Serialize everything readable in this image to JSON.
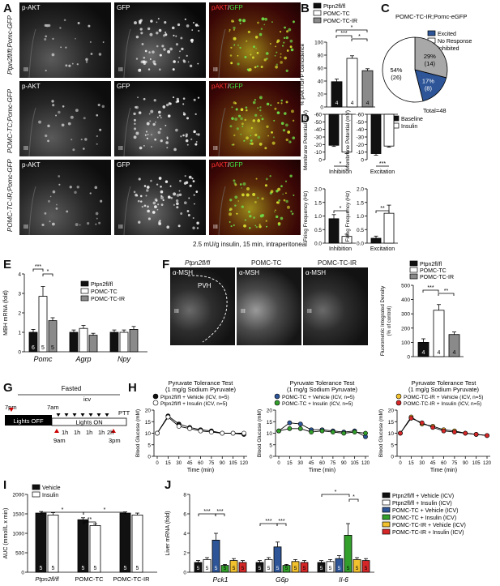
{
  "panel_letters": [
    "A",
    "B",
    "C",
    "D",
    "E",
    "F",
    "G",
    "H",
    "I",
    "J"
  ],
  "colors": {
    "black": "#111111",
    "white": "#ffffff",
    "gray": "#8a8a8a",
    "blue": "#2d5597",
    "green": "#33a02c",
    "yellow": "#f2c12e",
    "red": "#d62728"
  },
  "panelA": {
    "columns": [
      "p-AKT",
      "GFP",
      "pAKT/GFP"
    ],
    "merge_parts": [
      "pAKT",
      "/",
      "GFP"
    ],
    "rows": [
      "Ptpn2fl/fl;Pomc-GFP",
      "POMC-TC;Pomc-GFP",
      "POMC-TC-IR;Pomc-GFP"
    ],
    "region_label": "III",
    "caption": "2.5 mU/g insulin, 15 min, intraperitoneal"
  },
  "panelB": {
    "legend": [
      "Ptpn2fl/fl",
      "POMC-TC",
      "POMC-TC-IR"
    ],
    "ylabel": "% pAKT/GFP Coincidence",
    "yticks": [
      "0",
      "20",
      "40",
      "60",
      "80",
      "100"
    ],
    "n": [
      "4",
      "4",
      "4"
    ],
    "sig": [
      "***",
      "*",
      "*"
    ]
  },
  "panelC": {
    "title": "POMC-TC-IR;Pomc-eGFP",
    "legend": [
      "Excited",
      "No Response",
      "Inhibited"
    ],
    "slices": [
      {
        "label": "17%",
        "count": "(8)"
      },
      {
        "label": "54%",
        "count": "(26)"
      },
      {
        "label": "29%",
        "count": "(14)"
      }
    ],
    "total": "Total=48"
  },
  "panelD": {
    "legend": [
      "Baseline",
      "Insulin"
    ],
    "mp_ylabel": "Membrane Potential (mV)",
    "ff_ylabel": "Firing Frequency (Hz)",
    "mp_yticks": [
      "0",
      "-10",
      "-20",
      "-30",
      "-40",
      "-50",
      "-60"
    ],
    "ff_yticks": [
      "0.0",
      "0.5",
      "1.0",
      "1.5",
      "2.0"
    ],
    "xlabels": [
      "Inhibition",
      "Excitation"
    ],
    "sig": [
      "*",
      "***",
      "*",
      "**"
    ]
  },
  "panelE": {
    "legend": [
      "Ptpn2fl/fl",
      "POMC-TC",
      "POMC-TC-IR"
    ],
    "ylabel": "MBH mRNA (fold)",
    "yticks": [
      "0",
      "1",
      "2",
      "3",
      "4"
    ],
    "categories": [
      "Pomc",
      "Agrp",
      "Npy"
    ],
    "n": [
      "6",
      "5",
      "5"
    ],
    "sig": [
      "***",
      "*"
    ]
  },
  "panelF": {
    "columns": [
      "Ptpn2fl/fl",
      "POMC-TC",
      "POMC-TC-IR"
    ],
    "stain": "α-MSH",
    "pvh_label": "PVH",
    "region_label": "III",
    "legend": [
      "Ptpn2fl/fl",
      "POMC-TC",
      "POMC-TC-IR"
    ],
    "ylabel_lines": [
      "Fluorometric Integrated Density",
      "(% of control)"
    ],
    "yticks": [
      "0",
      "100",
      "200",
      "300",
      "400",
      "500"
    ],
    "n": [
      "4",
      "4",
      "4"
    ],
    "sig": [
      "***",
      "**"
    ]
  },
  "panelG": {
    "fasted": "Fasted",
    "lights_off": "Lights OFF",
    "lights_on": "Lights ON",
    "times": [
      "7pm",
      "7am",
      "9am",
      "3pm",
      "2h"
    ],
    "intervals": [
      "1h",
      "1h",
      "1h",
      "1h"
    ],
    "icv": "icv",
    "ptt": "PTT"
  },
  "panelH": {
    "title_lines": [
      "Pyruvate Tolerance Test",
      "(1 mg/g Sodium Pyruvate)"
    ],
    "ylabel": "Blood Glucose (mM)",
    "xlabel": "Time (min)",
    "xticks": [
      "0",
      "15",
      "30",
      "45",
      "60",
      "75",
      "90",
      "105",
      "120"
    ],
    "yticks": [
      "0",
      "5",
      "10",
      "15",
      "20"
    ],
    "legends": [
      [
        "Ptpn2fl/fl + Vehicle (ICV, n=5)",
        "Ptpn2fl/fl + Insulin (ICV, n=5)"
      ],
      [
        "POMC-TC + Vehicle (ICV, n=5)",
        "POMC-TC + Insulin (ICV, n=5)"
      ],
      [
        "POMC-TC-IR + Vehicle (ICV, n=5)",
        "POMC-TC-IR + Insulin (ICV, n=5)"
      ]
    ]
  },
  "panelI": {
    "legend": [
      "Vehicle",
      "Insulin"
    ],
    "ylabel": "AUC (mmol/L x min)",
    "yticks": [
      "0",
      "500",
      "1000",
      "1500",
      "2000"
    ],
    "groups": [
      "Ptpn2fl/fl",
      "POMC-TC",
      "POMC-TC-IR"
    ],
    "n": [
      "5",
      "5",
      "5",
      "5",
      "5",
      "5"
    ],
    "sig": [
      "*",
      "*",
      "**"
    ]
  },
  "panelJ": {
    "ylabel": "Liver mRNA (fold)",
    "yticks": [
      "0",
      "2",
      "4",
      "6",
      "8"
    ],
    "genes": [
      "Pck1",
      "G6p",
      "Il-6"
    ],
    "legend": [
      "Ptpn2fl/fl + Vehicle (ICV)",
      "Ptpn2fl/fl + Insulin (ICV)",
      "POMC-TC + Vehicle (ICV)",
      "POMC-TC + Insulin (ICV)",
      "POMC-TC-IR + Vehicle (ICV)",
      "POMC-TC-IR + Insulin (ICV)"
    ],
    "n": "5",
    "sig": [
      "***",
      "***",
      "***",
      "***",
      "*",
      "*"
    ]
  },
  "chart_data": [
    {
      "type": "bar",
      "panel": "B",
      "categories": [
        "Ptpn2fl/fl",
        "POMC-TC",
        "POMC-TC-IR"
      ],
      "values": [
        39,
        75,
        56
      ],
      "errors": [
        4,
        4,
        3
      ],
      "ylabel": "% pAKT/GFP Coincidence",
      "ylim": [
        0,
        100
      ]
    },
    {
      "type": "pie",
      "panel": "C",
      "categories": [
        "Excited",
        "No Response",
        "Inhibited"
      ],
      "values": [
        17,
        54,
        29
      ],
      "counts": [
        8,
        26,
        14
      ]
    },
    {
      "type": "bar",
      "panel": "D-MP-Inhibition",
      "categories": [
        "Baseline",
        "Insulin"
      ],
      "values": [
        -41,
        -50
      ],
      "errors": [
        1.5,
        2
      ],
      "ylim": [
        -60,
        0
      ]
    },
    {
      "type": "bar",
      "panel": "D-MP-Excitation",
      "categories": [
        "Baseline",
        "Insulin"
      ],
      "values": [
        -52,
        -42
      ],
      "errors": [
        2,
        1.5
      ],
      "ylim": [
        -60,
        0
      ]
    },
    {
      "type": "bar",
      "panel": "D-FF-Inhibition",
      "categories": [
        "Baseline",
        "Insulin"
      ],
      "values": [
        0.9,
        0.25
      ],
      "errors": [
        0.15,
        0.08
      ],
      "ylim": [
        0,
        2
      ]
    },
    {
      "type": "bar",
      "panel": "D-FF-Excitation",
      "categories": [
        "Baseline",
        "Insulin"
      ],
      "values": [
        0.18,
        1.1
      ],
      "errors": [
        0.08,
        0.3
      ],
      "ylim": [
        0,
        2
      ]
    },
    {
      "type": "bar",
      "panel": "E",
      "categories": [
        "Pomc",
        "Agrp",
        "Npy"
      ],
      "series": [
        {
          "name": "Ptpn2fl/fl",
          "values": [
            1.0,
            1.0,
            1.0
          ],
          "errors": [
            0.15,
            0.12,
            0.12
          ]
        },
        {
          "name": "POMC-TC",
          "values": [
            2.85,
            1.2,
            1.0
          ],
          "errors": [
            0.5,
            0.15,
            0.12
          ]
        },
        {
          "name": "POMC-TC-IR",
          "values": [
            1.6,
            0.85,
            1.15
          ],
          "errors": [
            0.15,
            0.1,
            0.15
          ]
        }
      ],
      "ylabel": "MBH mRNA (fold)",
      "ylim": [
        0,
        4
      ]
    },
    {
      "type": "bar",
      "panel": "F",
      "categories": [
        "Ptpn2fl/fl",
        "POMC-TC",
        "POMC-TC-IR"
      ],
      "values": [
        100,
        325,
        155
      ],
      "errors": [
        25,
        40,
        18
      ],
      "ylim": [
        0,
        500
      ]
    },
    {
      "type": "line",
      "panel": "H1",
      "x": [
        0,
        15,
        30,
        45,
        60,
        75,
        90,
        105,
        120
      ],
      "series": [
        {
          "name": "Ptpn2fl/fl + Vehicle (ICV, n=5)",
          "values": [
            10,
            17.5,
            14,
            12.5,
            11.5,
            11,
            10,
            10,
            9.5
          ]
        },
        {
          "name": "Ptpn2fl/fl + Insulin (ICV, n=5)",
          "values": [
            10,
            17,
            13,
            12,
            11,
            10.5,
            10,
            10,
            10
          ]
        }
      ],
      "ylim": [
        0,
        20
      ]
    },
    {
      "type": "line",
      "panel": "H2",
      "x": [
        0,
        15,
        30,
        45,
        60,
        75,
        90,
        105,
        120
      ],
      "series": [
        {
          "name": "POMC-TC + Vehicle (ICV, n=5)",
          "values": [
            11,
            14.5,
            14,
            11.5,
            11.5,
            11,
            10.5,
            11,
            8.5
          ]
        },
        {
          "name": "POMC-TC + Insulin (ICV, n=5)",
          "values": [
            11,
            12,
            12,
            10.5,
            11,
            10.5,
            10,
            10.5,
            10
          ]
        }
      ],
      "ylim": [
        0,
        20
      ]
    },
    {
      "type": "line",
      "panel": "H3",
      "x": [
        0,
        15,
        30,
        45,
        60,
        75,
        90,
        105,
        120
      ],
      "series": [
        {
          "name": "POMC-TC-IR + Vehicle (ICV, n=5)",
          "values": [
            10,
            17,
            14,
            13,
            11.5,
            11,
            10,
            9.5,
            9
          ]
        },
        {
          "name": "POMC-TC-IR + Insulin (ICV, n=5)",
          "values": [
            10,
            16.5,
            14.5,
            12.5,
            11,
            10.5,
            10,
            9.5,
            9
          ]
        }
      ],
      "ylim": [
        0,
        20
      ]
    },
    {
      "type": "bar",
      "panel": "I",
      "categories": [
        "Ptpn2fl/fl",
        "POMC-TC",
        "POMC-TC-IR"
      ],
      "series": [
        {
          "name": "Vehicle",
          "values": [
            1520,
            1350,
            1520
          ],
          "errors": [
            40,
            50,
            30
          ]
        },
        {
          "name": "Insulin",
          "values": [
            1470,
            1200,
            1470
          ],
          "errors": [
            60,
            40,
            50
          ]
        }
      ],
      "ylabel": "AUC (mmol/L x min)",
      "ylim": [
        0,
        2000
      ]
    },
    {
      "type": "bar",
      "panel": "J",
      "categories": [
        "Pck1",
        "G6p",
        "Il-6"
      ],
      "series": [
        {
          "name": "Ptpn2fl/fl + Vehicle (ICV)",
          "values": [
            1.0,
            1.0,
            1.0
          ],
          "errors": [
            0.2,
            0.2,
            0.2
          ]
        },
        {
          "name": "Ptpn2fl/fl + Insulin (ICV)",
          "values": [
            1.3,
            1.3,
            1.1
          ],
          "errors": [
            0.2,
            0.2,
            0.2
          ]
        },
        {
          "name": "POMC-TC + Vehicle (ICV)",
          "values": [
            3.3,
            2.6,
            1.4
          ],
          "errors": [
            0.7,
            0.5,
            0.3
          ]
        },
        {
          "name": "POMC-TC + Insulin (ICV)",
          "values": [
            0.7,
            0.7,
            3.8
          ],
          "errors": [
            0.1,
            0.1,
            1.2
          ]
        },
        {
          "name": "POMC-TC-IR + Vehicle (ICV)",
          "values": [
            1.2,
            1.1,
            1.3
          ],
          "errors": [
            0.2,
            0.2,
            0.2
          ]
        },
        {
          "name": "POMC-TC-IR + Insulin (ICV)",
          "values": [
            1.0,
            1.0,
            1.2
          ],
          "errors": [
            0.2,
            0.2,
            0.2
          ]
        }
      ],
      "ylabel": "Liver mRNA (fold)",
      "ylim": [
        0,
        8
      ]
    }
  ]
}
